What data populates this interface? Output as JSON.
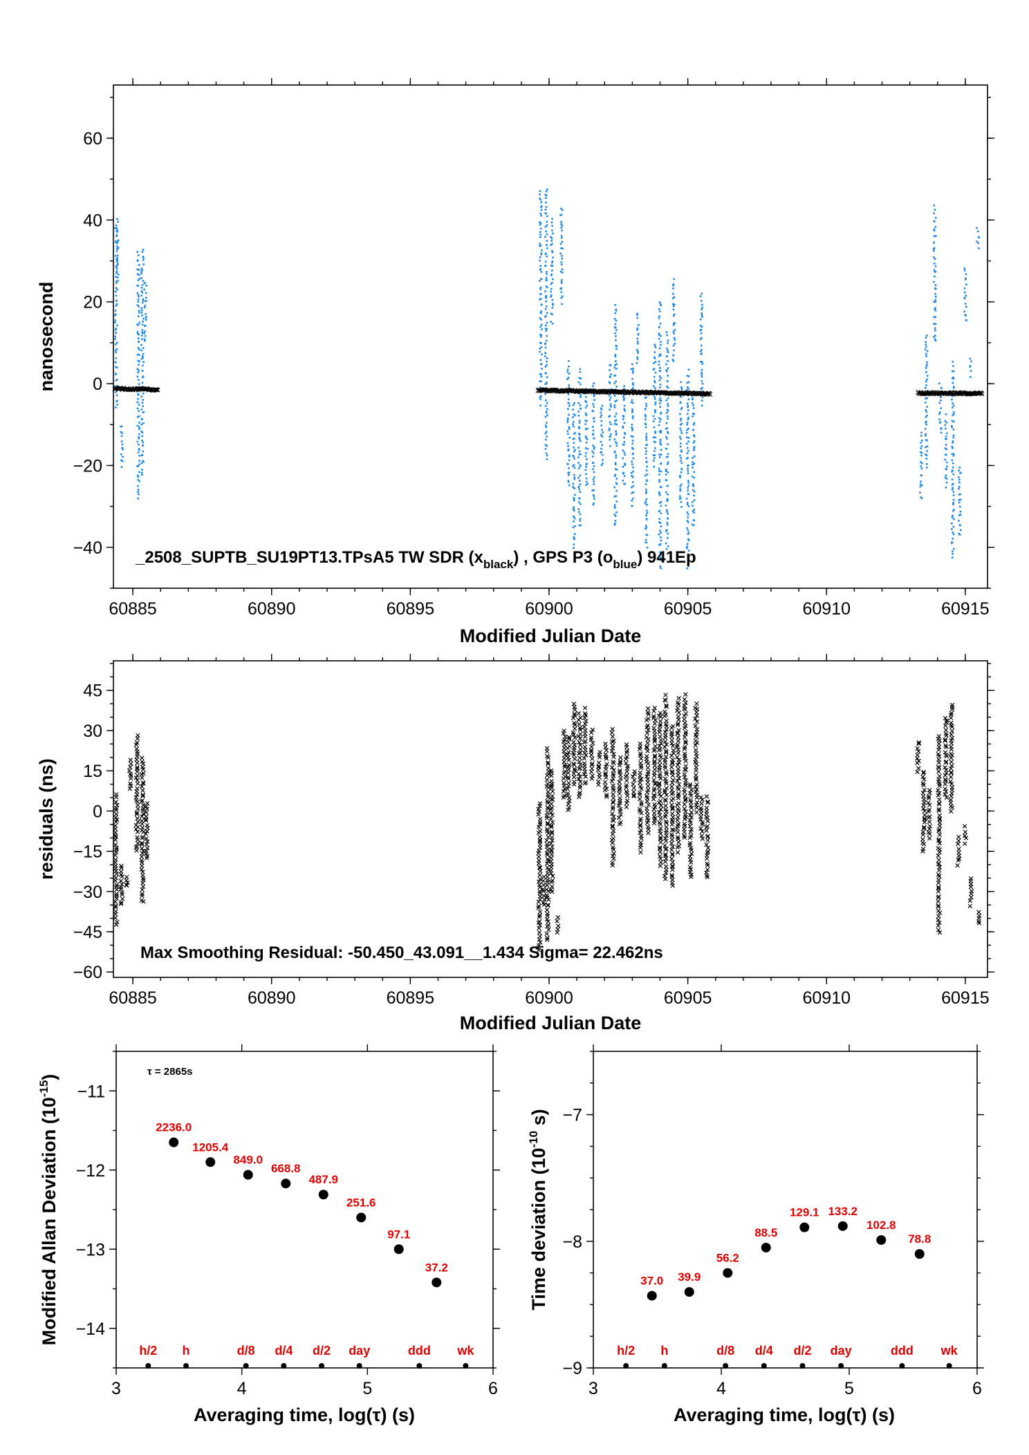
{
  "colors": {
    "black": "#000000",
    "blue": "#1e88e5",
    "red": "#e00000"
  },
  "chart_data": [
    {
      "id": "phase",
      "type": "scatter",
      "xlabel": "Modified Julian Date",
      "ylabel": "nanosecond",
      "xlim": [
        60884.3,
        60915.8
      ],
      "ylim": [
        -50,
        73
      ],
      "xticks": [
        "60885",
        "60890",
        "60895",
        "60900",
        "60905",
        "60910",
        "60915"
      ],
      "yticks": [
        "−40",
        "−20",
        "0",
        "20",
        "40",
        "60"
      ],
      "annotation": {
        "prefix": "_2508_SUPTB_SU19PT13.TPsA5    TW SDR (x",
        "sub1": "black",
        "mid": ") ,  GPS P3 (o",
        "sub2": "blue",
        "suffix": ")  941Ep"
      },
      "segments": [
        [
          60884.35,
          60885.9
        ],
        [
          60899.6,
          60905.8
        ],
        [
          60913.3,
          60915.6
        ]
      ],
      "series": [
        {
          "marker": "x",
          "color": "#000000",
          "baseline": [
            [
              60884.35,
              -1.2
            ],
            [
              60885.9,
              -1.5
            ],
            [
              60899.6,
              -1.6
            ],
            [
              60905.8,
              -2.5
            ],
            [
              60913.3,
              -2.3
            ],
            [
              60915.6,
              -2.4
            ]
          ]
        },
        {
          "marker": "dot",
          "color": "#1e88e5",
          "runs": [
            [
              60884.4,
              -6,
              39
            ],
            [
              60884.45,
              25,
              40
            ],
            [
              60884.6,
              -20,
              -10
            ],
            [
              60885.2,
              -28,
              32
            ],
            [
              60885.35,
              -22,
              33
            ],
            [
              60885.45,
              10,
              25
            ],
            [
              60899.7,
              -5,
              47
            ],
            [
              60899.9,
              -18,
              48
            ],
            [
              60900.1,
              15,
              40
            ],
            [
              60900.45,
              20,
              43
            ],
            [
              60900.7,
              -25,
              5
            ],
            [
              60900.9,
              -40,
              -5
            ],
            [
              60901.1,
              -35,
              3
            ],
            [
              60901.35,
              -25,
              -2
            ],
            [
              60901.6,
              -30,
              0
            ],
            [
              60901.9,
              -20,
              -5
            ],
            [
              60902.2,
              -15,
              5
            ],
            [
              60902.4,
              -35,
              19
            ],
            [
              60902.7,
              -25,
              0
            ],
            [
              60903.0,
              -30,
              5
            ],
            [
              60903.2,
              5,
              17
            ],
            [
              60903.5,
              -40,
              -3
            ],
            [
              60903.8,
              -20,
              10
            ],
            [
              60904.0,
              -45,
              20
            ],
            [
              60904.25,
              -40,
              12
            ],
            [
              60904.5,
              5,
              25
            ],
            [
              60904.75,
              -30,
              0
            ],
            [
              60905.0,
              -45,
              3
            ],
            [
              60905.2,
              -35,
              -2
            ],
            [
              60905.5,
              -5,
              22
            ],
            [
              60913.4,
              -28,
              -12
            ],
            [
              60913.6,
              -20,
              12
            ],
            [
              60913.9,
              10,
              43
            ],
            [
              60914.1,
              -12,
              0
            ],
            [
              60914.3,
              -25,
              -8
            ],
            [
              60914.55,
              -42,
              5
            ],
            [
              60914.8,
              -37,
              -20
            ],
            [
              60915.0,
              15,
              28
            ],
            [
              60915.2,
              2,
              6
            ],
            [
              60915.45,
              33,
              38
            ]
          ]
        }
      ]
    },
    {
      "id": "residuals",
      "type": "scatter",
      "xlabel": "Modified Julian Date",
      "ylabel": "residuals (ns)",
      "xlim": [
        60884.3,
        60915.8
      ],
      "ylim": [
        -62,
        56
      ],
      "xticks": [
        "60885",
        "60890",
        "60895",
        "60900",
        "60905",
        "60910",
        "60915"
      ],
      "yticks": [
        "−60",
        "−45",
        "−30",
        "−15",
        "0",
        "15",
        "30",
        "45"
      ],
      "annotation": "Max Smoothing Residual: -50.450_43.091__1.434  Sigma= 22.462ns",
      "series": [
        {
          "marker": "x",
          "color": "#000000",
          "runs": [
            [
              60884.4,
              -42,
              6
            ],
            [
              60884.6,
              -35,
              -20
            ],
            [
              60884.8,
              -28,
              -25
            ],
            [
              60884.9,
              8,
              19
            ],
            [
              60885.15,
              -15,
              28
            ],
            [
              60885.35,
              -34,
              20
            ],
            [
              60885.5,
              -18,
              3
            ],
            [
              60899.65,
              -52,
              3
            ],
            [
              60899.8,
              -35,
              -25
            ],
            [
              60899.95,
              -48,
              23
            ],
            [
              60900.1,
              -30,
              15
            ],
            [
              60900.3,
              -45,
              -40
            ],
            [
              60900.55,
              5,
              30
            ],
            [
              60900.7,
              0,
              28
            ],
            [
              60900.9,
              10,
              40
            ],
            [
              60901.1,
              5,
              36
            ],
            [
              60901.3,
              10,
              38
            ],
            [
              60901.55,
              12,
              30
            ],
            [
              60901.8,
              10,
              22
            ],
            [
              60902.05,
              5,
              25
            ],
            [
              60902.3,
              -20,
              30
            ],
            [
              60902.55,
              -5,
              20
            ],
            [
              60902.8,
              2,
              25
            ],
            [
              60903.05,
              5,
              15
            ],
            [
              60903.3,
              -15,
              25
            ],
            [
              60903.55,
              -8,
              38
            ],
            [
              60903.8,
              -5,
              38
            ],
            [
              60904.0,
              -20,
              37
            ],
            [
              60904.2,
              -25,
              43
            ],
            [
              60904.45,
              -28,
              32
            ],
            [
              60904.65,
              -15,
              42
            ],
            [
              60904.9,
              -10,
              43
            ],
            [
              60905.1,
              -25,
              10
            ],
            [
              60905.3,
              0,
              40
            ],
            [
              60905.5,
              -10,
              5
            ],
            [
              60905.7,
              -25,
              5
            ],
            [
              60913.3,
              15,
              26
            ],
            [
              60913.5,
              -15,
              15
            ],
            [
              60913.7,
              -10,
              8
            ],
            [
              60914.05,
              -45,
              28
            ],
            [
              60914.3,
              5,
              35
            ],
            [
              60914.5,
              0,
              40
            ],
            [
              60914.75,
              -20,
              -10
            ],
            [
              60915.0,
              -12,
              -6
            ],
            [
              60915.2,
              -35,
              -25
            ],
            [
              60915.5,
              -42,
              -38
            ]
          ]
        }
      ]
    },
    {
      "id": "mdev",
      "type": "scatter",
      "xlabel": "Averaging time, log(τ) (s)",
      "ylabel_main": "Modified Allan Deviation (10",
      "ylabel_sup": "-15",
      "ylabel_end": ")",
      "tau": "τ = 2865s",
      "xlim": [
        3,
        6
      ],
      "ylim": [
        -14.5,
        -10.5
      ],
      "xticks": [
        "3",
        "4",
        "5",
        "6"
      ],
      "yticks": [
        "−14",
        "−13",
        "−12",
        "−11"
      ],
      "points": [
        {
          "x": 3.458,
          "y": -11.65,
          "label": "2236.0"
        },
        {
          "x": 3.75,
          "y": -11.9,
          "label": "1205.4"
        },
        {
          "x": 4.05,
          "y": -12.06,
          "label": "849.0"
        },
        {
          "x": 4.35,
          "y": -12.17,
          "label": "668.8"
        },
        {
          "x": 4.65,
          "y": -12.31,
          "label": "487.9"
        },
        {
          "x": 4.95,
          "y": -12.6,
          "label": "251.6"
        },
        {
          "x": 5.25,
          "y": -13.0,
          "label": "97.1"
        },
        {
          "x": 5.55,
          "y": -13.42,
          "label": "37.2"
        }
      ],
      "marks": [
        {
          "x": 3.255,
          "label": "h/2"
        },
        {
          "x": 3.556,
          "label": "h"
        },
        {
          "x": 4.033,
          "label": "d/8"
        },
        {
          "x": 4.334,
          "label": "d/4"
        },
        {
          "x": 4.635,
          "label": "d/2"
        },
        {
          "x": 4.936,
          "label": "day"
        },
        {
          "x": 5.413,
          "label": "ddd"
        },
        {
          "x": 5.782,
          "label": "wk"
        }
      ]
    },
    {
      "id": "tdev",
      "type": "scatter",
      "xlabel": "Averaging time, log(τ) (s)",
      "ylabel_main": "Time deviation (10",
      "ylabel_sup": "-10",
      "ylabel_end": " s)",
      "xlim": [
        3,
        6
      ],
      "ylim": [
        -9,
        -6.5
      ],
      "xticks": [
        "3",
        "4",
        "5",
        "6"
      ],
      "yticks": [
        "−9",
        "−8",
        "−7"
      ],
      "points": [
        {
          "x": 3.458,
          "y": -8.43,
          "label": "37.0"
        },
        {
          "x": 3.75,
          "y": -8.4,
          "label": "39.9"
        },
        {
          "x": 4.05,
          "y": -8.25,
          "label": "56.2"
        },
        {
          "x": 4.35,
          "y": -8.05,
          "label": "88.5"
        },
        {
          "x": 4.65,
          "y": -7.89,
          "label": "129.1"
        },
        {
          "x": 4.95,
          "y": -7.88,
          "label": "133.2"
        },
        {
          "x": 5.25,
          "y": -7.99,
          "label": "102.8"
        },
        {
          "x": 5.55,
          "y": -8.1,
          "label": "78.8"
        }
      ],
      "marks": [
        {
          "x": 3.255,
          "label": "h/2"
        },
        {
          "x": 3.556,
          "label": "h"
        },
        {
          "x": 4.033,
          "label": "d/8"
        },
        {
          "x": 4.334,
          "label": "d/4"
        },
        {
          "x": 4.635,
          "label": "d/2"
        },
        {
          "x": 4.936,
          "label": "day"
        },
        {
          "x": 5.413,
          "label": "ddd"
        },
        {
          "x": 5.782,
          "label": "wk"
        }
      ]
    }
  ]
}
